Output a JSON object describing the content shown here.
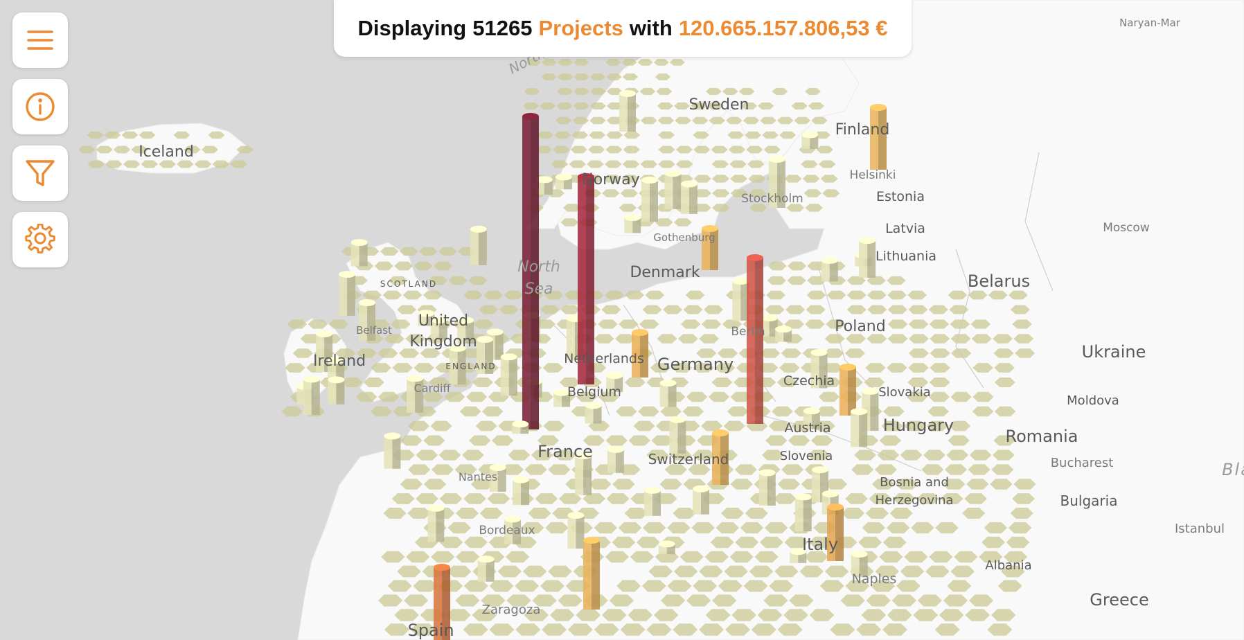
{
  "banner": {
    "prefix": "Displaying",
    "count": "51265",
    "entity": "Projects",
    "connector": "with",
    "amount": "120.665.157.806,53 €"
  },
  "toolbar": [
    {
      "id": "menu",
      "icon": "menu-icon"
    },
    {
      "id": "info",
      "icon": "info-icon"
    },
    {
      "id": "filter",
      "icon": "filter-icon"
    },
    {
      "id": "settings",
      "icon": "gear-icon"
    }
  ],
  "colors": {
    "accent": "#ec8a32",
    "land": "#f9f9f9",
    "water": "#d9d9d9",
    "hex_low": "#cdca98",
    "bar_high": "#7a2238"
  },
  "labels": {
    "countries": [
      "Iceland",
      "Sweden",
      "Finland",
      "Norway",
      "Estonia",
      "Latvia",
      "Lithuania",
      "Denmark",
      "United",
      "Kingdom",
      "Ireland",
      "Belarus",
      "Poland",
      "Ukraine",
      "Germany",
      "Netherlands",
      "Belgium",
      "Czechia",
      "Slovakia",
      "Moldova",
      "Austria",
      "Hungary",
      "Romania",
      "France",
      "Switzerland",
      "Slovenia",
      "Bosnia and",
      "Herzegovina",
      "Bulgaria",
      "Italy",
      "Albania",
      "Greece",
      "Spain"
    ],
    "cities": [
      "Naryan-Mar",
      "Helsinki",
      "Stockholm",
      "Moscow",
      "Gothenburg",
      "Belfast",
      "Berlin",
      "Cardiff",
      "Nantes",
      "Bucharest",
      "Bordeaux",
      "Istanbul",
      "Naples",
      "Zaragoza"
    ],
    "regions": [
      "SCOTLAND",
      "ENGLAND"
    ],
    "seas": [
      "North",
      "Sea",
      "North",
      "Bla"
    ]
  }
}
